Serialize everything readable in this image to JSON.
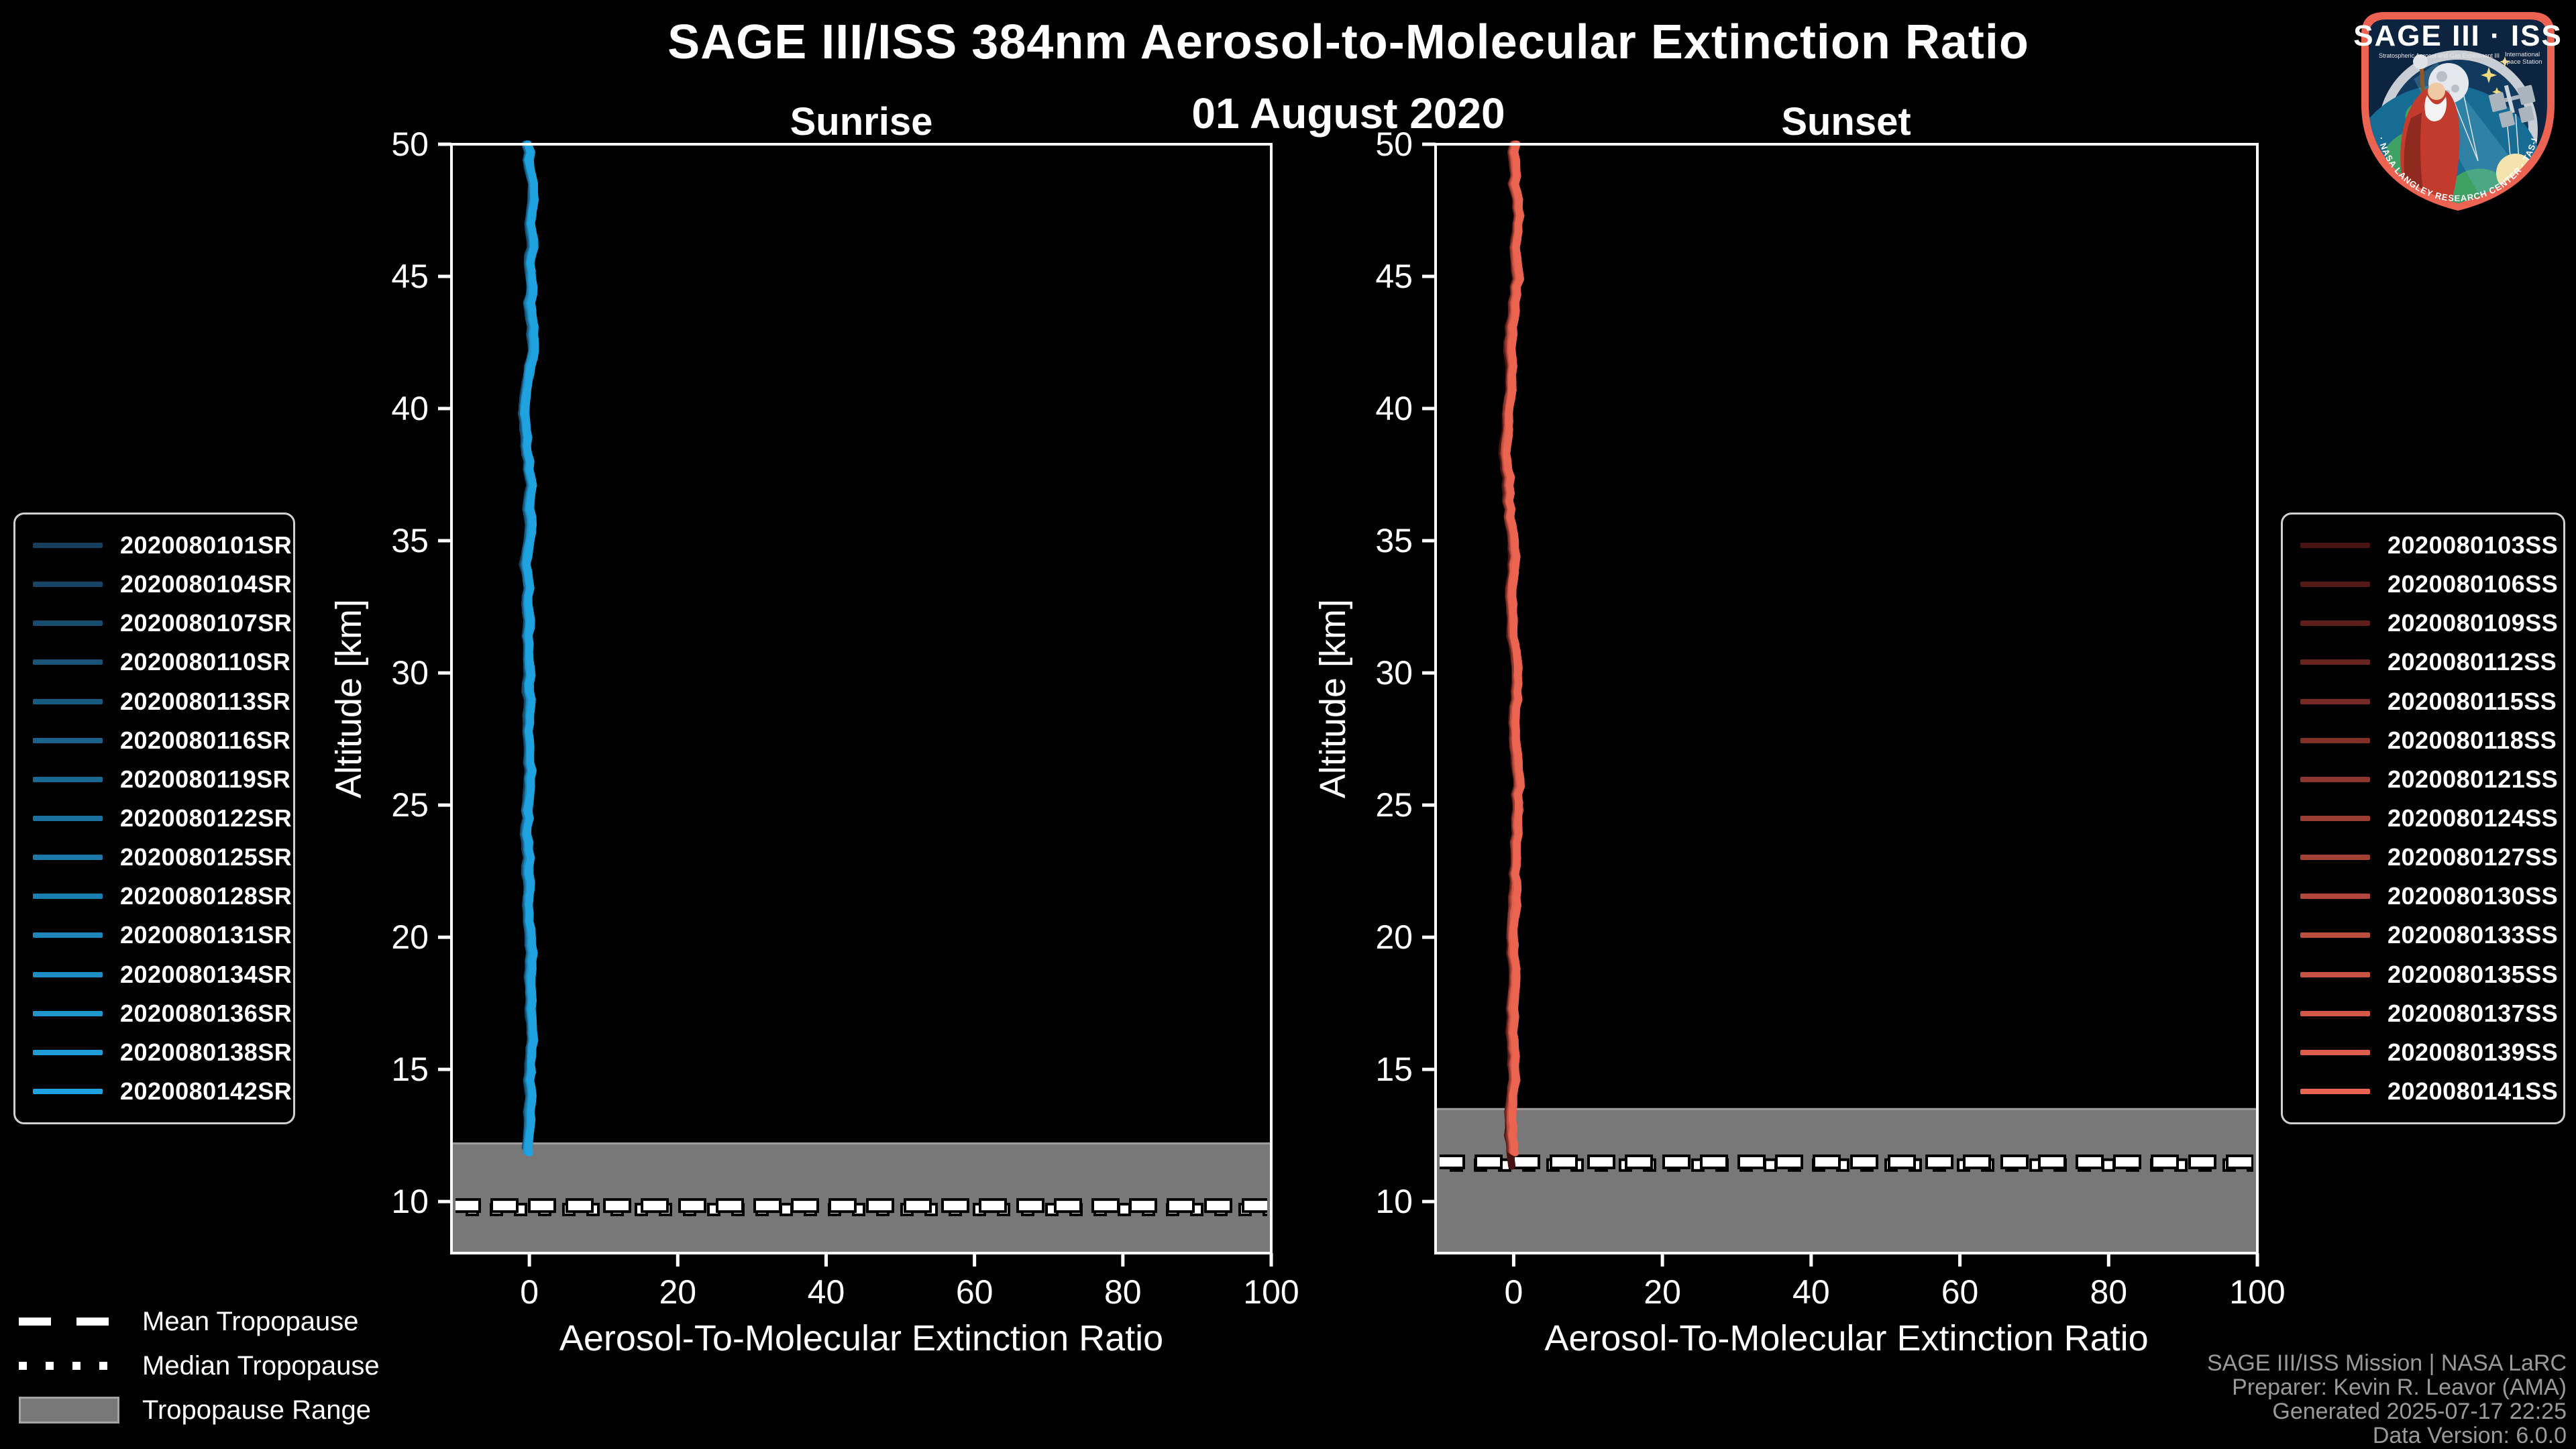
{
  "header": {
    "title": "SAGE III/ISS 384nm Aerosol-to-Molecular Extinction Ratio",
    "subtitle": "01 August 2020"
  },
  "logo": {
    "title": "SAGE III · ISS",
    "subtitle_left": "Stratospheric Aerosol and Gas Experiment III",
    "subtitle_right_1": "International",
    "subtitle_right_2": "Space Station",
    "ring_text": "BALL · NASA LANGLEY RESEARCH CENTER · TAS-I · ESA"
  },
  "tropopause_legend": {
    "items": [
      {
        "label": "Mean Tropopause",
        "style": "dashed"
      },
      {
        "label": "Median Tropopause",
        "style": "dotted"
      },
      {
        "label": "Tropopause Range",
        "style": "band"
      }
    ]
  },
  "attribution": {
    "lines": [
      "SAGE III/ISS Mission | NASA LaRC",
      "Preparer: Kevin R. Leavor (AMA)",
      "Generated 2025-07-17 22:25",
      "Data Version: 6.0.0"
    ]
  },
  "colors": {
    "background": "#000000",
    "text": "#ffffff",
    "muted_text": "#9a9a9a",
    "spine": "#ffffff",
    "band": "#787878",
    "band_edge": "#9e9e9e",
    "legend_border": "#d0d0d0",
    "sunrise_accent": "#1FA3E0",
    "sunset_accent": "#EA6450"
  },
  "chart_data": [
    {
      "type": "line",
      "title": "Sunrise",
      "xlabel": "Aerosol-To-Molecular Extinction Ratio",
      "ylabel": "Altitude [km]",
      "xlim": [
        -10.5,
        100
      ],
      "ylim": [
        8.05,
        50
      ],
      "x_ticks": [
        0,
        20,
        40,
        60,
        80,
        100
      ],
      "y_ticks": [
        10,
        15,
        20,
        25,
        30,
        35,
        40,
        45,
        50
      ],
      "grid": false,
      "legend_position": "outside-left",
      "description": "15 sunrise occultation profiles, extinction ratio ~0 (±1) at all altitudes from 50 km down to ~12 km",
      "profile": {
        "ratio_center": 0.0,
        "wiggle_amplitude": 0.8,
        "alt_top": 50
      },
      "tropopause": {
        "mean": 9.85,
        "median": 9.7,
        "range_top": 12.2,
        "range_bottom": 8.05
      },
      "series": [
        {
          "name": "2020080101SR",
          "color": "#153E5C",
          "alt_bottom": 12.1
        },
        {
          "name": "2020080104SR",
          "color": "#164565",
          "alt_bottom": 12.1
        },
        {
          "name": "2020080107SR",
          "color": "#164C6F",
          "alt_bottom": 12.05
        },
        {
          "name": "2020080110SR",
          "color": "#175478",
          "alt_bottom": 12.05
        },
        {
          "name": "2020080113SR",
          "color": "#185B81",
          "alt_bottom": 12.0
        },
        {
          "name": "2020080116SR",
          "color": "#19628B",
          "alt_bottom": 12.0
        },
        {
          "name": "2020080119SR",
          "color": "#196995",
          "alt_bottom": 12.0
        },
        {
          "name": "2020080122SR",
          "color": "#1A719E",
          "alt_bottom": 11.95
        },
        {
          "name": "2020080125SR",
          "color": "#1B78A7",
          "alt_bottom": 11.95
        },
        {
          "name": "2020080128SR",
          "color": "#1B7FB1",
          "alt_bottom": 11.95
        },
        {
          "name": "2020080131SR",
          "color": "#1C86BA",
          "alt_bottom": 11.9
        },
        {
          "name": "2020080134SR",
          "color": "#1D8DC4",
          "alt_bottom": 11.9
        },
        {
          "name": "2020080136SR",
          "color": "#1E95CD",
          "alt_bottom": 11.9
        },
        {
          "name": "2020080138SR",
          "color": "#1E9CD7",
          "alt_bottom": 11.88
        },
        {
          "name": "2020080142SR",
          "color": "#1FA3E0",
          "alt_bottom": 11.85
        }
      ]
    },
    {
      "type": "line",
      "title": "Sunset",
      "xlabel": "Aerosol-To-Molecular Extinction Ratio",
      "ylabel": "Altitude [km]",
      "xlim": [
        -10.5,
        100
      ],
      "ylim": [
        8.05,
        50
      ],
      "x_ticks": [
        0,
        20,
        40,
        60,
        80,
        100
      ],
      "y_ticks": [
        10,
        15,
        20,
        25,
        30,
        35,
        40,
        45,
        50
      ],
      "grid": false,
      "legend_position": "outside-right",
      "description": "15 sunset occultation profiles, extinction ratio ~0 (±1) at all altitudes from 50 km down to ~11.4 km",
      "profile": {
        "ratio_center": 0.0,
        "wiggle_amplitude": 0.8,
        "alt_top": 50
      },
      "tropopause": {
        "mean": 11.5,
        "median": 11.38,
        "range_top": 13.5,
        "range_bottom": 8.05
      },
      "series": [
        {
          "name": "2020080103SS",
          "color": "#471312",
          "alt_bottom": 11.35
        },
        {
          "name": "2020080106SS",
          "color": "#531916",
          "alt_bottom": 11.95
        },
        {
          "name": "2020080109SS",
          "color": "#5E1F1B",
          "alt_bottom": 11.95
        },
        {
          "name": "2020080112SS",
          "color": "#6A241F",
          "alt_bottom": 11.95
        },
        {
          "name": "2020080115SS",
          "color": "#762A24",
          "alt_bottom": 11.95
        },
        {
          "name": "2020080118SS",
          "color": "#813028",
          "alt_bottom": 11.95
        },
        {
          "name": "2020080121SS",
          "color": "#8D362D",
          "alt_bottom": 11.95
        },
        {
          "name": "2020080124SS",
          "color": "#993C31",
          "alt_bottom": 11.92
        },
        {
          "name": "2020080127SS",
          "color": "#A44135",
          "alt_bottom": 11.92
        },
        {
          "name": "2020080130SS",
          "color": "#B0473A",
          "alt_bottom": 11.92
        },
        {
          "name": "2020080133SS",
          "color": "#BB4D3E",
          "alt_bottom": 11.9
        },
        {
          "name": "2020080135SS",
          "color": "#C75343",
          "alt_bottom": 11.9
        },
        {
          "name": "2020080137SS",
          "color": "#D35847",
          "alt_bottom": 11.9
        },
        {
          "name": "2020080139SS",
          "color": "#DE5E4C",
          "alt_bottom": 11.88
        },
        {
          "name": "2020080141SS",
          "color": "#EA6450",
          "alt_bottom": 11.85
        }
      ]
    }
  ]
}
